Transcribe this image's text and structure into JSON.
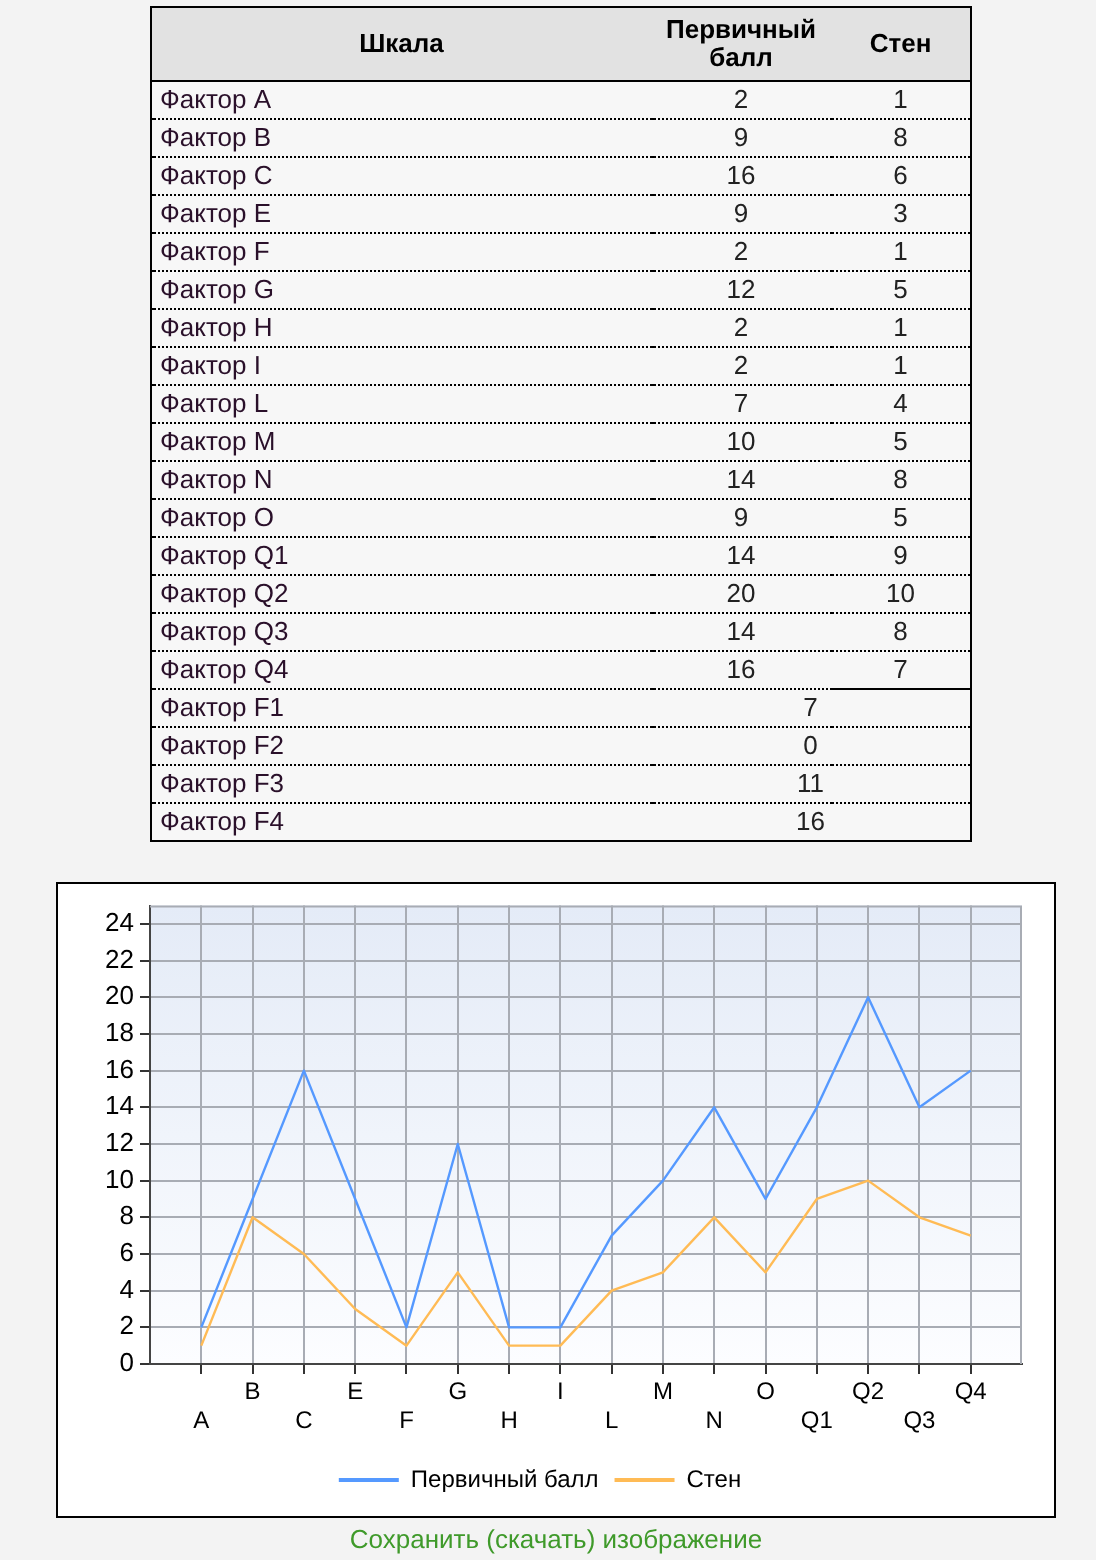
{
  "chart_data": [
    {
      "type": "other",
      "xlabel": "Шкала",
      "categories": [
        "Фактор A",
        "Фактор B",
        "Фактор C",
        "Фактор E",
        "Фактор F",
        "Фактор G",
        "Фактор H",
        "Фактор I",
        "Фактор L",
        "Фактор M",
        "Фактор N",
        "Фактор O",
        "Фактор Q1",
        "Фактор Q2",
        "Фактор Q3",
        "Фактор Q4",
        "Фактор F1",
        "Фактор F2",
        "Фактор F3",
        "Фактор F4"
      ],
      "series": [
        {
          "name": "Первичный балл",
          "values": [
            2,
            9,
            16,
            9,
            2,
            12,
            2,
            2,
            7,
            10,
            14,
            9,
            14,
            20,
            14,
            16,
            null,
            null,
            null,
            null
          ]
        },
        {
          "name": "Стен",
          "values": [
            1,
            8,
            6,
            3,
            1,
            5,
            1,
            1,
            4,
            5,
            8,
            5,
            9,
            10,
            8,
            7,
            null,
            null,
            null,
            null
          ]
        },
        {
          "values": [
            null,
            null,
            null,
            null,
            null,
            null,
            null,
            null,
            null,
            null,
            null,
            null,
            null,
            null,
            null,
            null,
            7,
            0,
            11,
            16
          ]
        }
      ],
      "data_labels": true
    },
    {
      "type": "line",
      "categories": [
        "A",
        "B",
        "C",
        "E",
        "F",
        "G",
        "H",
        "I",
        "L",
        "M",
        "N",
        "O",
        "Q1",
        "Q2",
        "Q3",
        "Q4"
      ],
      "series": [
        {
          "name": "Первичный балл",
          "color": "#5599ff",
          "values": [
            2,
            9,
            16,
            9,
            2,
            12,
            2,
            2,
            7,
            10,
            14,
            9,
            14,
            20,
            14,
            16
          ]
        },
        {
          "name": "Стен",
          "color": "#ffbb55",
          "values": [
            1,
            8,
            6,
            3,
            1,
            5,
            1,
            1,
            4,
            5,
            8,
            5,
            9,
            10,
            8,
            7
          ]
        }
      ],
      "ylim": [
        0,
        25
      ],
      "yticks": [
        0,
        2,
        4,
        6,
        8,
        10,
        12,
        14,
        16,
        18,
        20,
        22,
        24
      ],
      "grid": true,
      "legend": "bottom",
      "annotations": [
        "Сохранить (скачать) изображение"
      ]
    }
  ]
}
